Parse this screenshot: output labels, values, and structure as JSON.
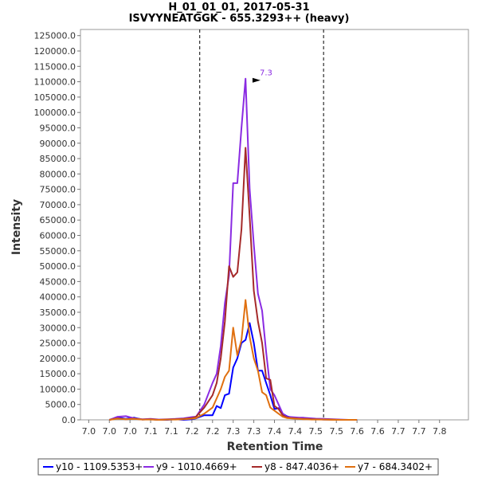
{
  "chart_data": {
    "type": "line",
    "title": "H_01_01_01, 2017-05-31",
    "subtitle": "ISVYYNEATGGK - 655.3293++ (heavy)",
    "xlabel": "Retention Time",
    "ylabel": "Intensity",
    "xlim": [
      6.93,
      7.87
    ],
    "ylim": [
      0,
      127000
    ],
    "x_tick_values": [
      6.95,
      7.0,
      7.05,
      7.1,
      7.15,
      7.2,
      7.25,
      7.3,
      7.35,
      7.4,
      7.45,
      7.5,
      7.55,
      7.6,
      7.65,
      7.7,
      7.75,
      7.8
    ],
    "x_tick_labels": [
      "7.0",
      "7.0",
      "7.0",
      "7.1",
      "7.1",
      "7.2",
      "7.2",
      "7.3",
      "7.3",
      "7.4",
      "7.4",
      "7.5",
      "7.5",
      "7.6",
      "7.6",
      "7.7",
      "7.7",
      "7.8"
    ],
    "y_tick_values": [
      0,
      5000,
      10000,
      15000,
      20000,
      25000,
      30000,
      35000,
      40000,
      45000,
      50000,
      55000,
      60000,
      65000,
      70000,
      75000,
      80000,
      85000,
      90000,
      95000,
      100000,
      105000,
      110000,
      115000,
      120000,
      125000
    ],
    "y_tick_labels": [
      "0.0",
      "5000.0",
      "10000.0",
      "15000.0",
      "20000.0",
      "25000.0",
      "30000.0",
      "35000.0",
      "40000.0",
      "45000.0",
      "50000.0",
      "55000.0",
      "60000.0",
      "65000.0",
      "70000.0",
      "75000.0",
      "80000.0",
      "85000.0",
      "90000.0",
      "95000.0",
      "100000.0",
      "105000.0",
      "110000.0",
      "115000.0",
      "120000.0",
      "125000.0"
    ],
    "boundary_lines": [
      7.219,
      7.519
    ],
    "peak_annotation": {
      "label": "7.3",
      "x": 7.37,
      "y": 111000
    },
    "grid": true,
    "legend_position": "bottom",
    "series": [
      {
        "name": "y10 - 1109.5353+",
        "color": "#0000ff",
        "x": [
          7.0,
          7.02,
          7.04,
          7.06,
          7.08,
          7.1,
          7.12,
          7.14,
          7.16,
          7.18,
          7.2,
          7.21,
          7.23,
          7.25,
          7.26,
          7.27,
          7.28,
          7.29,
          7.3,
          7.31,
          7.32,
          7.33,
          7.34,
          7.35,
          7.36,
          7.37,
          7.38,
          7.39,
          7.4,
          7.41,
          7.42,
          7.43,
          7.44,
          7.45,
          7.46,
          7.47,
          7.48,
          7.49,
          7.5,
          7.52,
          7.54,
          7.56,
          7.58,
          7.6
        ],
        "values": [
          0,
          800,
          300,
          700,
          100,
          200,
          0,
          0,
          200,
          0,
          200,
          500,
          1500,
          1500,
          4500,
          3800,
          8000,
          8500,
          17000,
          20000,
          25000,
          26000,
          31500,
          25000,
          16000,
          16000,
          12000,
          8000,
          3500,
          3800,
          2000,
          1200,
          800,
          600,
          400,
          300,
          400,
          300,
          200,
          100,
          100,
          0,
          0,
          0
        ]
      },
      {
        "name": "y9 - 1010.4669+",
        "color": "#8a2be2",
        "x": [
          7.0,
          7.02,
          7.04,
          7.06,
          7.08,
          7.1,
          7.12,
          7.14,
          7.16,
          7.18,
          7.2,
          7.21,
          7.23,
          7.25,
          7.26,
          7.27,
          7.28,
          7.29,
          7.3,
          7.31,
          7.32,
          7.33,
          7.34,
          7.35,
          7.36,
          7.37,
          7.38,
          7.39,
          7.4,
          7.41,
          7.42,
          7.43,
          7.44,
          7.45,
          7.46,
          7.47,
          7.48,
          7.49,
          7.5,
          7.52,
          7.54,
          7.56,
          7.58,
          7.6
        ],
        "values": [
          0,
          1000,
          1200,
          500,
          200,
          300,
          100,
          200,
          300,
          500,
          900,
          1000,
          5000,
          12000,
          15000,
          24000,
          38000,
          47000,
          77000,
          77000,
          95000,
          111000,
          75000,
          57000,
          41000,
          35500,
          22000,
          10000,
          8000,
          5000,
          2000,
          1000,
          900,
          800,
          700,
          700,
          600,
          500,
          400,
          300,
          200,
          100,
          0,
          0
        ]
      },
      {
        "name": "y8 - 847.4036+",
        "color": "#a52a2a",
        "x": [
          7.0,
          7.02,
          7.04,
          7.06,
          7.08,
          7.1,
          7.12,
          7.14,
          7.16,
          7.18,
          7.2,
          7.21,
          7.23,
          7.25,
          7.26,
          7.27,
          7.28,
          7.29,
          7.3,
          7.31,
          7.32,
          7.33,
          7.34,
          7.35,
          7.36,
          7.37,
          7.38,
          7.39,
          7.4,
          7.41,
          7.42,
          7.43,
          7.44,
          7.45,
          7.46,
          7.47,
          7.48,
          7.49,
          7.5,
          7.52,
          7.54,
          7.56,
          7.58,
          7.6
        ],
        "values": [
          0,
          500,
          200,
          400,
          100,
          200,
          0,
          100,
          200,
          300,
          600,
          1000,
          4000,
          8000,
          12000,
          20000,
          32000,
          50000,
          46500,
          48000,
          62000,
          88500,
          66000,
          42000,
          32000,
          25000,
          13500,
          13000,
          4500,
          3500,
          1500,
          800,
          600,
          500,
          400,
          300,
          300,
          200,
          200,
          100,
          100,
          0,
          0,
          0
        ]
      },
      {
        "name": "y7 - 684.3402+",
        "color": "#e07010",
        "x": [
          7.0,
          7.02,
          7.04,
          7.06,
          7.08,
          7.1,
          7.12,
          7.14,
          7.16,
          7.18,
          7.2,
          7.21,
          7.23,
          7.25,
          7.26,
          7.27,
          7.28,
          7.29,
          7.3,
          7.31,
          7.32,
          7.33,
          7.34,
          7.35,
          7.36,
          7.37,
          7.38,
          7.39,
          7.4,
          7.41,
          7.42,
          7.43,
          7.44,
          7.45,
          7.46,
          7.47,
          7.48,
          7.49,
          7.5,
          7.52,
          7.54,
          7.56,
          7.58,
          7.6
        ],
        "values": [
          0,
          400,
          200,
          300,
          100,
          100,
          0,
          100,
          100,
          200,
          400,
          600,
          2000,
          4000,
          7000,
          10000,
          14000,
          16000,
          30000,
          21000,
          26000,
          39000,
          27000,
          20000,
          16000,
          9000,
          8000,
          4000,
          3000,
          2000,
          1000,
          600,
          500,
          400,
          300,
          200,
          200,
          100,
          100,
          100,
          0,
          0,
          0,
          0
        ]
      }
    ]
  }
}
